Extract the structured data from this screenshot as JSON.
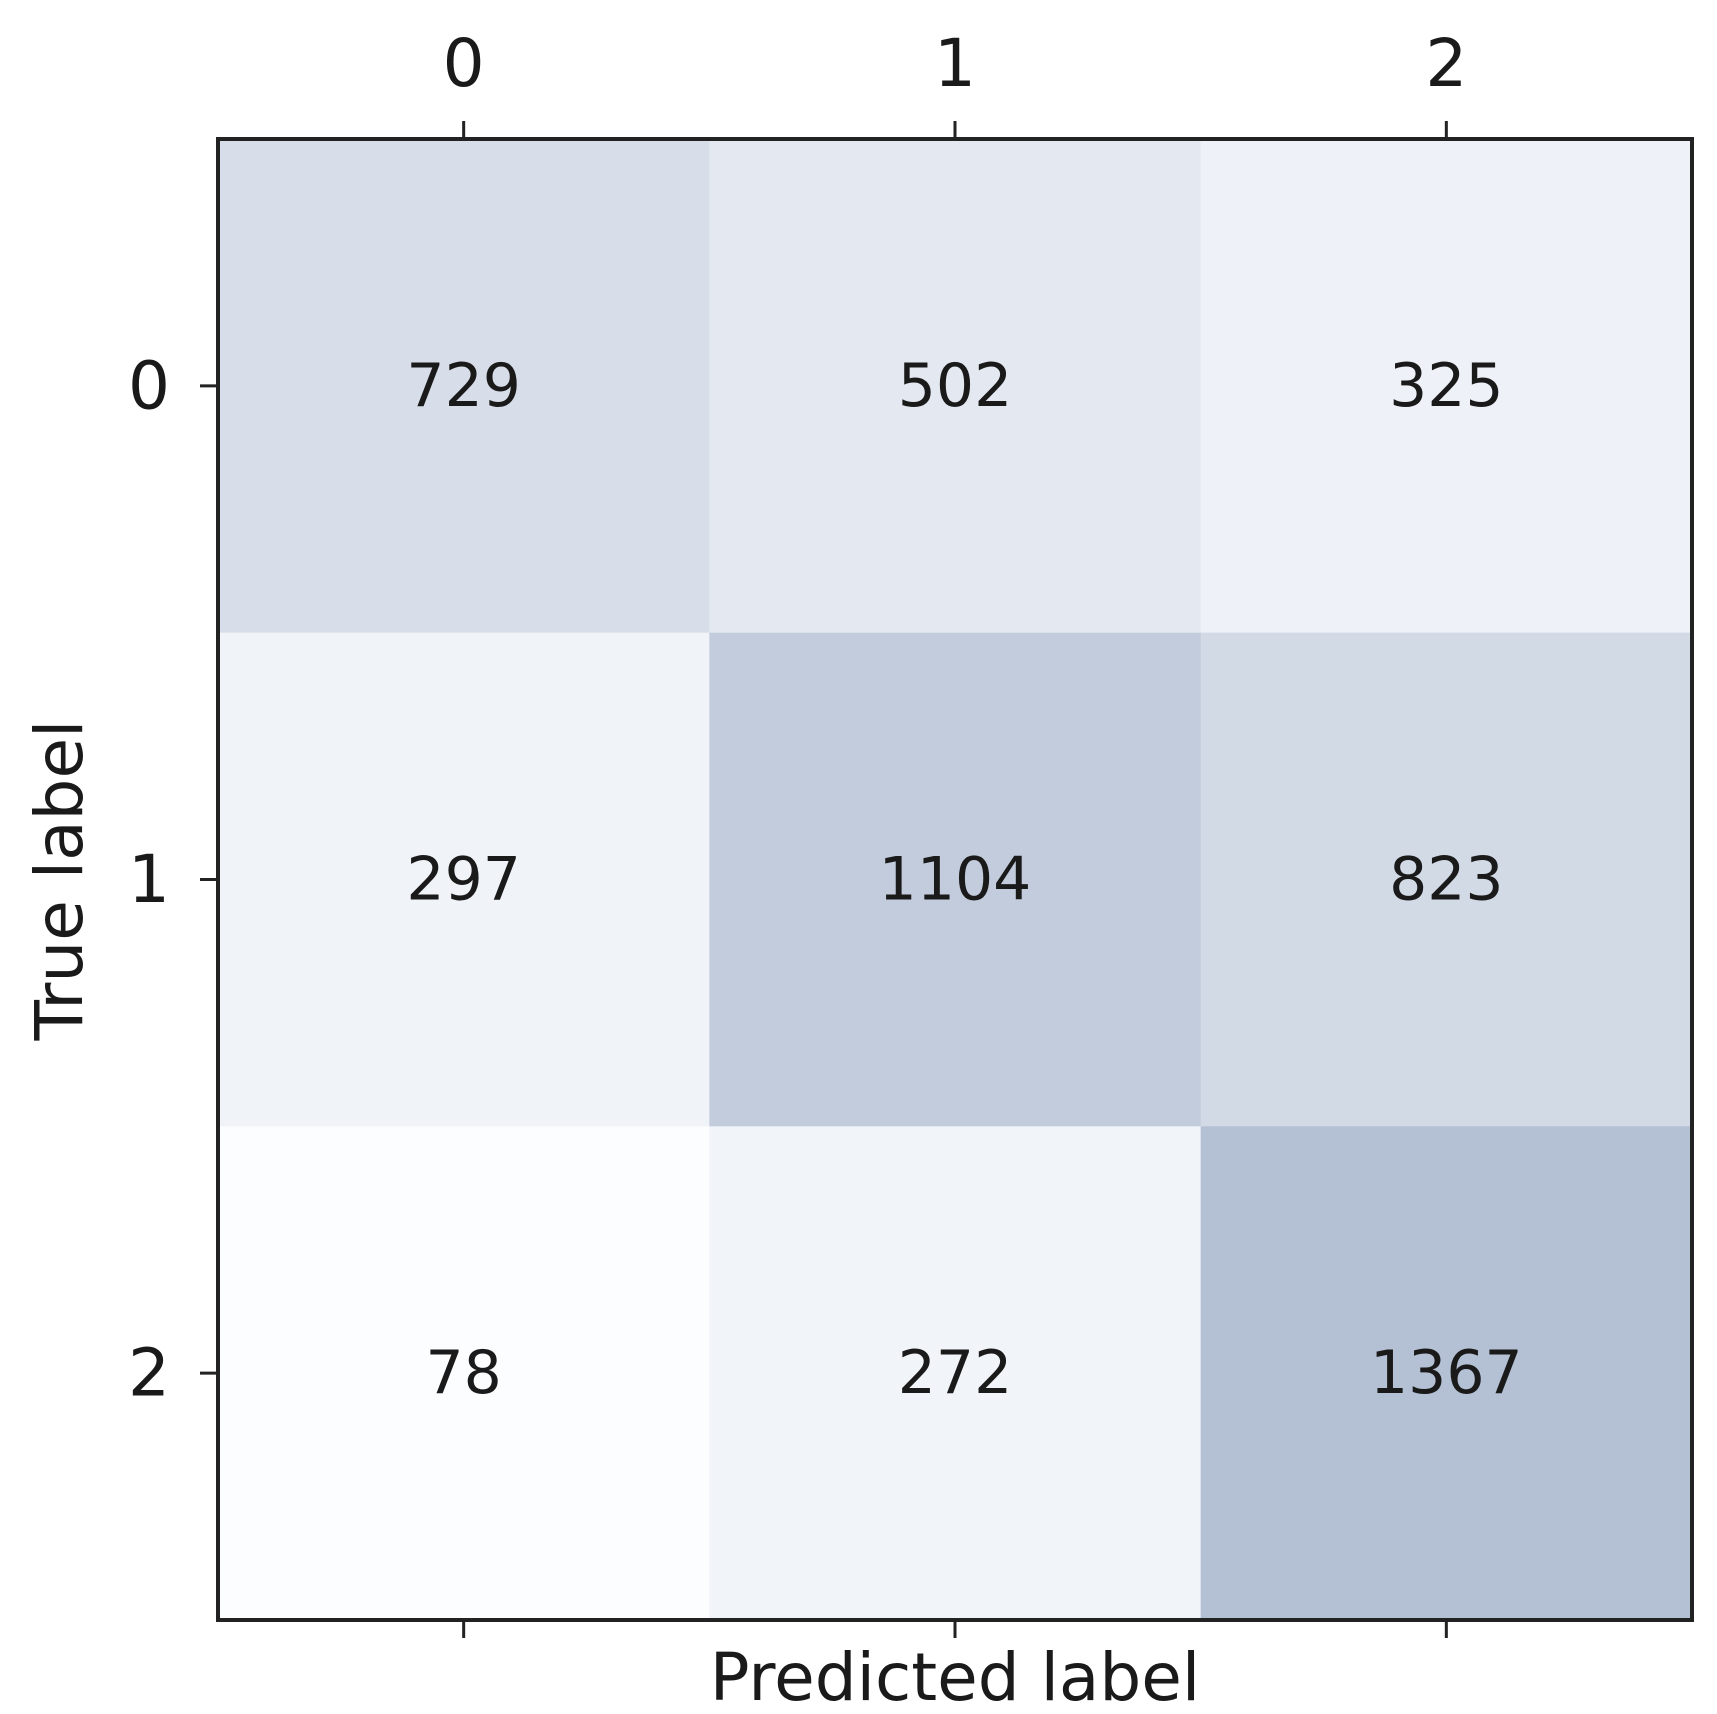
{
  "chart_data": {
    "type": "heatmap",
    "x_categories": [
      "0",
      "1",
      "2"
    ],
    "y_categories": [
      "0",
      "1",
      "2"
    ],
    "values": [
      [
        729,
        502,
        325
      ],
      [
        297,
        1104,
        823
      ],
      [
        78,
        272,
        1367
      ]
    ],
    "xlabel": "Predicted label",
    "ylabel": "True label",
    "x_tick_position": "top",
    "colormap": "Blues",
    "color_min": "#fcfdff",
    "color_max": "#b4c0d3",
    "grid": false
  }
}
